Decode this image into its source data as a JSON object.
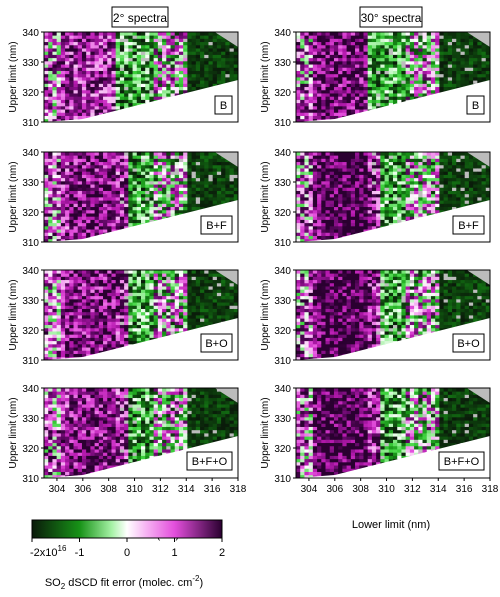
{
  "chart_data": {
    "type": "heatmap",
    "column_titles": [
      "2° spectra",
      "30° spectra"
    ],
    "panels": [
      {
        "column": "2° spectra",
        "label": "B"
      },
      {
        "column": "30° spectra",
        "label": "B"
      },
      {
        "column": "2° spectra",
        "label": "B+F"
      },
      {
        "column": "30° spectra",
        "label": "B+F"
      },
      {
        "column": "2° spectra",
        "label": "B+O"
      },
      {
        "column": "30° spectra",
        "label": "B+O"
      },
      {
        "column": "2° spectra",
        "label": "B+F+O"
      },
      {
        "column": "30° spectra",
        "label": "B+F+O"
      }
    ],
    "xlabel": "Lower limit (nm)",
    "ylabel": "Upper limit (nm)",
    "xlim": [
      303,
      318
    ],
    "ylim": [
      310,
      340
    ],
    "x_ticks": [
      "304",
      "306",
      "308",
      "310",
      "312",
      "314",
      "316",
      "318"
    ],
    "y_ticks": [
      "310",
      "320",
      "330",
      "340"
    ],
    "colorbar": {
      "label_prefix": "SO",
      "label_sub": "2",
      "label_suffix": " dSCD  fit error (molec. cm",
      "label_sup": "-2",
      "label_end": ")",
      "range": [
        -2e+16,
        2e+16
      ],
      "tick_labels": [
        "-2x10",
        "-1",
        "0",
        "1",
        "2"
      ],
      "tick_exponent": "16",
      "tick_values": [
        -2,
        -1,
        0,
        1,
        2
      ],
      "colors": [
        "#0a1a0a",
        "#0e4a0e",
        "#179217",
        "#3fd43f",
        "#a6f2a6",
        "#ffffff",
        "#f6b4f3",
        "#e34fdc",
        "#b71ab0",
        "#6c0a70",
        "#2a0030"
      ]
    },
    "no_data_color": "#bcbcbc",
    "invalid_region_color": "#ffffff"
  }
}
